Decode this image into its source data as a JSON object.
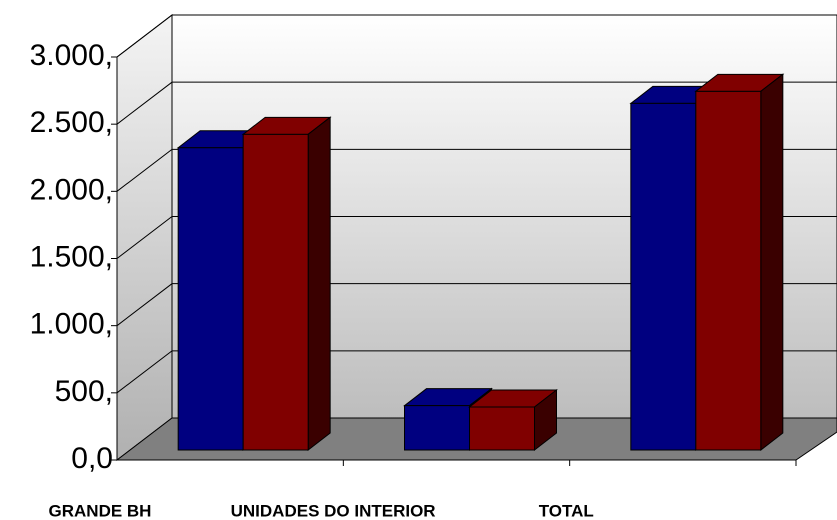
{
  "chart_data": {
    "type": "bar3d",
    "categories": [
      "GRANDE BH",
      "UNIDADES DO INTERIOR",
      "TOTAL"
    ],
    "series": [
      {
        "color": "#000080",
        "values": [
          2250,
          330,
          2580
        ]
      },
      {
        "color": "#800000",
        "values": [
          2350,
          320,
          2670
        ]
      }
    ],
    "ylim": [
      0,
      3000
    ],
    "yticks": [
      {
        "value": 0,
        "label": "0,0"
      },
      {
        "value": 500,
        "label": "500,"
      },
      {
        "value": 1000,
        "label": "1.000,"
      },
      {
        "value": 1500,
        "label": "1.500,"
      },
      {
        "value": 2000,
        "label": "2.000,"
      },
      {
        "value": 2500,
        "label": "2.500,"
      },
      {
        "value": 3000,
        "label": "3.000,"
      }
    ],
    "grid": true
  }
}
